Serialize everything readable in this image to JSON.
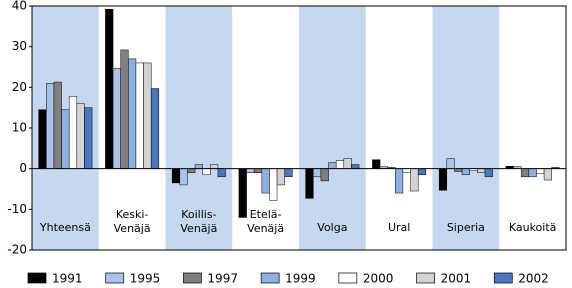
{
  "chart_data": {
    "type": "bar",
    "categories": [
      "Yhteensä",
      "Keski-\nVenäjä",
      "Koillis-\nVenäjä",
      "Etelä-\nVenäjä",
      "Volga",
      "Ural",
      "Siperia",
      "Kaukoitä"
    ],
    "series": [
      {
        "name": "1991",
        "color": "#000000",
        "values": [
          14.5,
          39.2,
          -3.5,
          -12,
          -7.3,
          2.2,
          -5.3,
          0.6
        ]
      },
      {
        "name": "1995",
        "color": "#a9c4e8",
        "values": [
          21,
          24.7,
          -4,
          -1,
          -2,
          0.5,
          2.5,
          0.5
        ]
      },
      {
        "name": "1997",
        "color": "#808080",
        "values": [
          21.3,
          29.2,
          -1,
          -1,
          -3,
          0.3,
          -0.7,
          -2
        ]
      },
      {
        "name": "1999",
        "color": "#8eb0e0",
        "values": [
          14.5,
          27,
          1,
          -6,
          1.5,
          -6,
          -1.5,
          -2
        ]
      },
      {
        "name": "2000",
        "color": "#ffffff",
        "values": [
          17.8,
          26,
          -1.5,
          -7.8,
          2,
          -1,
          -0.5,
          -1.2
        ]
      },
      {
        "name": "2001",
        "color": "#d3d3d3",
        "values": [
          16,
          26,
          1,
          -4,
          2.5,
          -5.5,
          -1,
          -2.8
        ]
      },
      {
        "name": "2002",
        "color": "#4a78c0",
        "values": [
          15,
          19.7,
          -2,
          -2,
          1,
          -1.5,
          -2,
          0.3
        ]
      }
    ],
    "ylim": [
      -20,
      40
    ],
    "yticks": [
      -20,
      -10,
      0,
      10,
      20,
      30,
      40
    ],
    "band_color": "#c6d8f0"
  }
}
